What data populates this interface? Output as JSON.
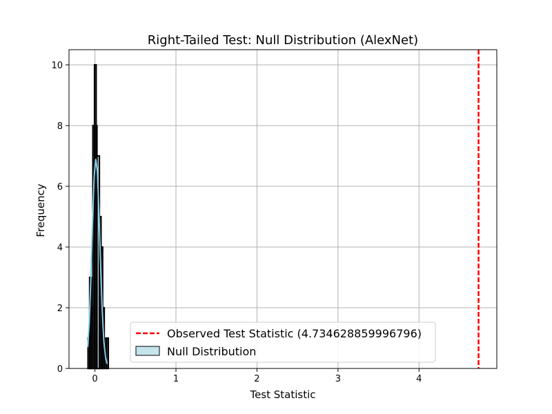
{
  "chart_data": {
    "type": "histogram",
    "title": "Right-Tailed Test: Null Distribution (AlexNet)",
    "xlabel": "Test Statistic",
    "ylabel": "Frequency",
    "xlim": [
      -0.32,
      4.96
    ],
    "ylim": [
      0,
      10.5
    ],
    "x_ticks": [
      0,
      1,
      2,
      3,
      4
    ],
    "y_ticks": [
      0,
      2,
      4,
      6,
      8,
      10
    ],
    "grid": true,
    "legend_position": "lower-center",
    "colors": {
      "bar_edge": "#000000",
      "bar_fill": "#add8e6",
      "kde_line": "#87ceeb",
      "observed_line": "#ff0000",
      "grid": "#b0b0b0"
    },
    "histogram_bins": [
      {
        "x0": -0.085,
        "x1": -0.065,
        "count": 1
      },
      {
        "x0": -0.065,
        "x1": -0.045,
        "count": 3
      },
      {
        "x0": -0.045,
        "x1": -0.025,
        "count": 2
      },
      {
        "x0": -0.025,
        "x1": -0.005,
        "count": 8
      },
      {
        "x0": -0.005,
        "x1": 0.015,
        "count": 10
      },
      {
        "x0": 0.015,
        "x1": 0.025,
        "count": 8
      },
      {
        "x0": 0.025,
        "x1": 0.055,
        "count": 7
      },
      {
        "x0": 0.055,
        "x1": 0.075,
        "count": 5
      },
      {
        "x0": 0.075,
        "x1": 0.095,
        "count": 4
      },
      {
        "x0": 0.095,
        "x1": 0.115,
        "count": 2
      },
      {
        "x0": 0.115,
        "x1": 0.135,
        "count": 1
      },
      {
        "x0": 0.145,
        "x1": 0.165,
        "count": 1
      }
    ],
    "kde_points": [
      [
        -0.09,
        0.7
      ],
      [
        -0.07,
        1.5
      ],
      [
        -0.05,
        3.0
      ],
      [
        -0.03,
        4.8
      ],
      [
        -0.01,
        6.3
      ],
      [
        0.01,
        6.9
      ],
      [
        0.03,
        6.5
      ],
      [
        0.05,
        5.1
      ],
      [
        0.07,
        3.4
      ],
      [
        0.09,
        1.9
      ],
      [
        0.11,
        0.9
      ],
      [
        0.13,
        0.4
      ],
      [
        0.15,
        0.15
      ]
    ],
    "observed_statistic": 4.734628859996796,
    "legend": [
      {
        "label": "Observed Test Statistic (4.734628859996796)",
        "kind": "dashed-line",
        "color": "#ff0000"
      },
      {
        "label": "Null Distribution",
        "kind": "patch",
        "color": "#add8e6"
      }
    ]
  }
}
